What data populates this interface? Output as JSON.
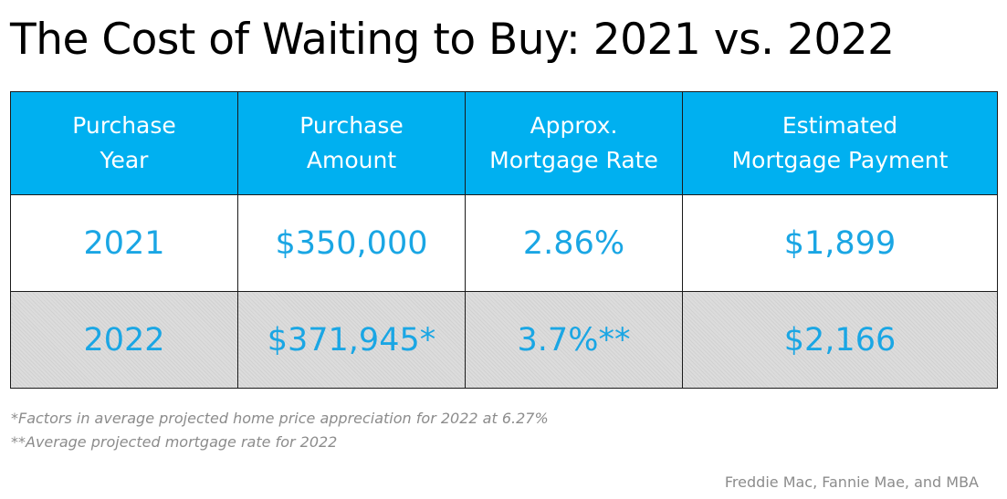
{
  "title": "The Cost of Waiting to Buy: 2021 vs. 2022",
  "chart_data": {
    "type": "table",
    "title": "The Cost of Waiting to Buy: 2021 vs. 2022",
    "columns": [
      {
        "line1": "Purchase",
        "line2": "Year"
      },
      {
        "line1": "Purchase",
        "line2": "Amount"
      },
      {
        "line1": "Approx.",
        "line2": "Mortgage Rate"
      },
      {
        "line1": "Estimated",
        "line2": "Mortgage Payment"
      }
    ],
    "rows": [
      [
        "2021",
        "$350,000",
        "2.86%",
        "$1,899"
      ],
      [
        "2022",
        "$371,945*",
        "3.7%**",
        "$2,166"
      ]
    ]
  },
  "footnotes": [
    "*Factors in average projected home price appreciation for 2022 at 6.27%",
    "**Average  projected mortgage rate for 2022"
  ],
  "source": "Freddie Mac, Fannie Mae, and MBA",
  "colors": {
    "header_background": "#00b0f0",
    "header_text": "#ffffff",
    "value_text": "#1aa6e4",
    "shaded_row": "#dcdcdc",
    "note_text": "#8c8c8c"
  }
}
